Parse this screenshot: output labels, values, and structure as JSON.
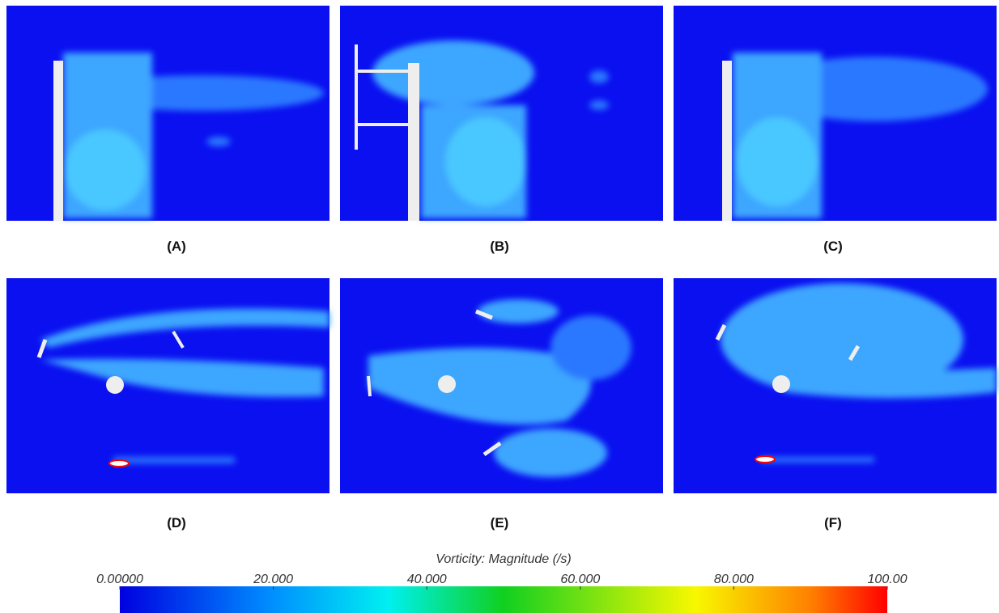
{
  "panels": [
    {
      "label": "(A)"
    },
    {
      "label": "(B)"
    },
    {
      "label": "(C)"
    },
    {
      "label": "(D)"
    },
    {
      "label": "(E)"
    },
    {
      "label": "(F)"
    }
  ],
  "colorbar": {
    "title": "Vorticity: Magnitude (/s)",
    "range": [
      0,
      100
    ],
    "ticks": [
      {
        "value": 0,
        "label": "0.00000"
      },
      {
        "value": 20,
        "label": "20.000"
      },
      {
        "value": 40,
        "label": "40.000"
      },
      {
        "value": 60,
        "label": "60.000"
      },
      {
        "value": 80,
        "label": "80.000"
      },
      {
        "value": 100,
        "label": "100.00"
      }
    ]
  }
}
